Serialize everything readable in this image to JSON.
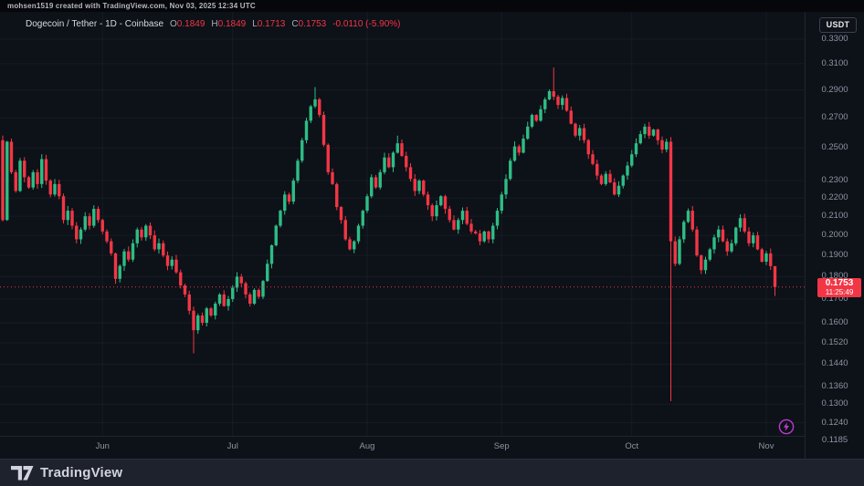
{
  "attribution_bar": {
    "text": "mohsen1519 created with TradingView.com, Nov 03, 2025 12:34 UTC"
  },
  "symbol_header": {
    "title": "Dogecoin / Tether - 1D - Coinbase",
    "fields": [
      {
        "label": "O",
        "value": "0.1849"
      },
      {
        "label": "H",
        "value": "0.1849"
      },
      {
        "label": "L",
        "value": "0.1713"
      },
      {
        "label": "C",
        "value": "0.1753"
      }
    ],
    "change": "-0.0110 (-5.90%)"
  },
  "price_axis": {
    "currency_button": "USDT",
    "last_price_label": {
      "price": "0.1753",
      "countdown": "11:25:49"
    }
  },
  "footer": {
    "brand": "TradingView"
  },
  "icons": {
    "lightning": "lightning-boost-icon",
    "lightning_color": "#b93ccd"
  },
  "chart_data": {
    "type": "candlestick",
    "title": "Dogecoin / Tether",
    "interval": "1D",
    "exchange": "Coinbase",
    "y_scale": "log",
    "ylim": [
      0.1185,
      0.33
    ],
    "grid": true,
    "y_ticks": [
      "0.3300",
      "0.3100",
      "0.2900",
      "0.2700",
      "0.2500",
      "0.2300",
      "0.2200",
      "0.2100",
      "0.2000",
      "0.1900",
      "0.1800",
      "0.1700",
      "0.1600",
      "0.1520",
      "0.1440",
      "0.1360",
      "0.1300",
      "0.1240",
      "0.1185"
    ],
    "x_months": [
      {
        "label": "Jun",
        "candle_index": 23
      },
      {
        "label": "Jul",
        "candle_index": 53
      },
      {
        "label": "Aug",
        "candle_index": 84
      },
      {
        "label": "Sep",
        "candle_index": 115
      },
      {
        "label": "Oct",
        "candle_index": 145
      },
      {
        "label": "Nov",
        "candle_index": 176
      }
    ],
    "first_candle_date": "2025-05-09",
    "first_open": 0.255,
    "closes": [
      0.208,
      0.254,
      0.235,
      0.224,
      0.242,
      0.232,
      0.226,
      0.235,
      0.228,
      0.243,
      0.23,
      0.222,
      0.228,
      0.221,
      0.208,
      0.213,
      0.205,
      0.198,
      0.203,
      0.21,
      0.205,
      0.214,
      0.208,
      0.202,
      0.197,
      0.191,
      0.179,
      0.185,
      0.192,
      0.188,
      0.196,
      0.203,
      0.199,
      0.205,
      0.2,
      0.193,
      0.196,
      0.19,
      0.185,
      0.188,
      0.182,
      0.176,
      0.172,
      0.165,
      0.157,
      0.163,
      0.16,
      0.166,
      0.163,
      0.168,
      0.172,
      0.167,
      0.17,
      0.175,
      0.18,
      0.177,
      0.172,
      0.168,
      0.174,
      0.171,
      0.178,
      0.186,
      0.195,
      0.205,
      0.213,
      0.222,
      0.218,
      0.23,
      0.242,
      0.255,
      0.268,
      0.278,
      0.283,
      0.272,
      0.252,
      0.235,
      0.228,
      0.215,
      0.208,
      0.198,
      0.193,
      0.197,
      0.205,
      0.213,
      0.221,
      0.232,
      0.226,
      0.235,
      0.244,
      0.238,
      0.247,
      0.253,
      0.245,
      0.238,
      0.231,
      0.224,
      0.23,
      0.222,
      0.216,
      0.21,
      0.216,
      0.221,
      0.214,
      0.208,
      0.203,
      0.208,
      0.213,
      0.206,
      0.202,
      0.201,
      0.197,
      0.202,
      0.198,
      0.205,
      0.213,
      0.222,
      0.231,
      0.242,
      0.251,
      0.247,
      0.256,
      0.264,
      0.272,
      0.268,
      0.276,
      0.283,
      0.289,
      0.285,
      0.279,
      0.284,
      0.275,
      0.266,
      0.258,
      0.263,
      0.255,
      0.246,
      0.24,
      0.233,
      0.228,
      0.234,
      0.229,
      0.222,
      0.227,
      0.233,
      0.239,
      0.246,
      0.253,
      0.259,
      0.264,
      0.258,
      0.262,
      0.255,
      0.249,
      0.254,
      0.197,
      0.186,
      0.198,
      0.207,
      0.213,
      0.203,
      0.19,
      0.183,
      0.188,
      0.193,
      0.199,
      0.203,
      0.197,
      0.192,
      0.196,
      0.204,
      0.209,
      0.202,
      0.196,
      0.2,
      0.193,
      0.187,
      0.191,
      0.1849,
      0.1753
    ],
    "wick_overrides": {
      "44": {
        "low": 0.148
      },
      "72": {
        "high": 0.292
      },
      "91": {
        "high": 0.258
      },
      "127": {
        "high": 0.307
      },
      "154": {
        "low": 0.131
      },
      "178": {
        "high": 0.1849,
        "low": 0.1713
      }
    },
    "price_line": 0.1753,
    "last_price": 0.1753,
    "countdown": "11:25:49",
    "up_color": "#2ebd85",
    "down_color": "#f23645",
    "grid_color": "rgba(150,160,185,0.07)",
    "price_line_color": "#f23645"
  }
}
